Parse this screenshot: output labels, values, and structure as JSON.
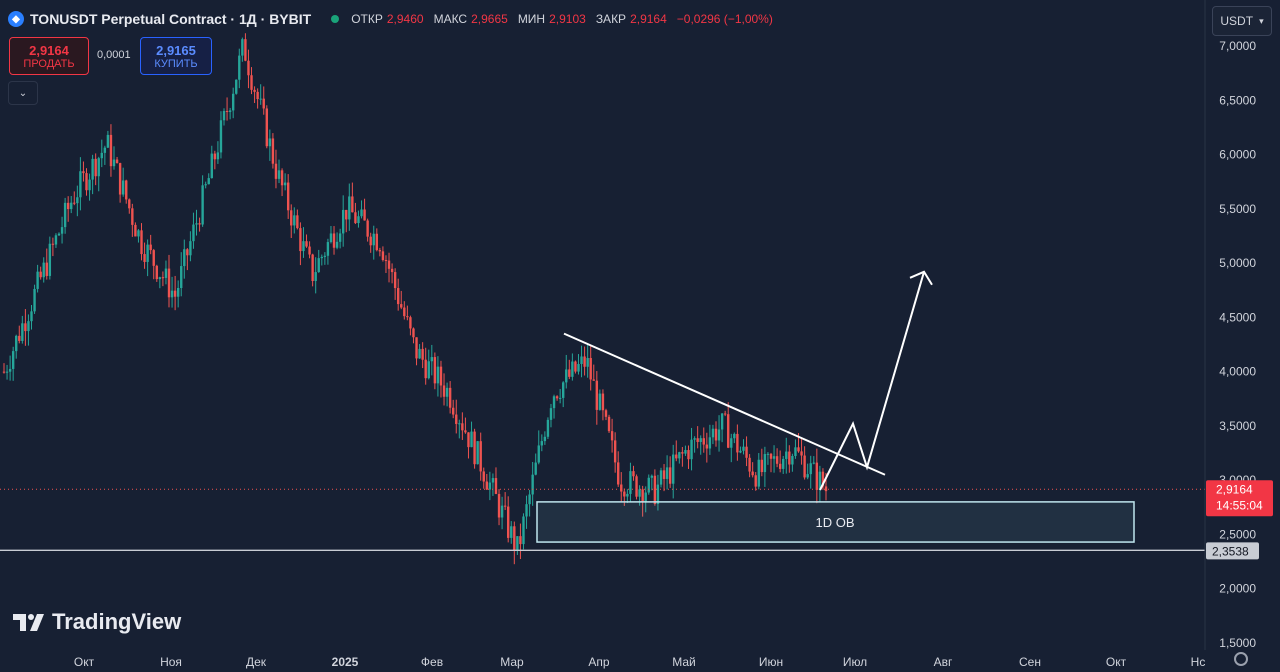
{
  "header": {
    "symbol_icon": "ton-diamond-icon",
    "title": "TONUSDT Perpetual Contract · 1Д · BYBIT",
    "ohlc": {
      "open_label": "ОТКР",
      "open": "2,9460",
      "high_label": "МАКС",
      "high": "2,9665",
      "low_label": "МИН",
      "low": "2,9103",
      "close_label": "ЗАКР",
      "close": "2,9164",
      "change": "−0,0296 (−1,00%)"
    }
  },
  "trade": {
    "sell_price": "2,9164",
    "sell_label": "ПРОДАТЬ",
    "spread": "0,0001",
    "buy_price": "2,9165",
    "buy_label": "КУПИТЬ"
  },
  "currency": "USDT",
  "branding": "TradingView",
  "chart_data": {
    "type": "candlestick",
    "y_axis_ticks": [
      "7,0000",
      "6,5000",
      "6,0000",
      "5,5000",
      "5,0000",
      "4,5000",
      "4,0000",
      "3,5000",
      "3,0000",
      "2,5000",
      "2,0000",
      "1,5000"
    ],
    "y_tick_values": [
      7.0,
      6.5,
      6.0,
      5.5,
      5.0,
      4.5,
      4.0,
      3.5,
      3.0,
      2.5,
      2.0,
      1.5
    ],
    "x_axis_ticks": [
      "Окт",
      "Ноя",
      "Дек",
      "2025",
      "Фев",
      "Мар",
      "Апр",
      "Май",
      "Июн",
      "Июл",
      "Авг",
      "Сен",
      "Окт",
      "Нс"
    ],
    "ylim": [
      1.45,
      7.05
    ],
    "current_price": "2,9164",
    "current_price_value": 2.9164,
    "countdown": "14:55:04",
    "horizontal_level": "2,3538",
    "horizontal_level_value": 2.3538,
    "zone": {
      "label": "1D OB",
      "top": 2.8,
      "bottom": 2.43
    },
    "trendline": {
      "from_price": 4.35,
      "to_price": 3.05
    },
    "projection_path_prices": [
      2.91,
      3.52,
      3.12,
      4.92
    ],
    "colors": {
      "up": "#26a69a",
      "down": "#ef5350",
      "background": "#172033",
      "grid": "#222b3e"
    },
    "key_closes": [
      4.0,
      4.8,
      5.6,
      6.1,
      5.2,
      4.7,
      5.8,
      7.0,
      5.8,
      4.9,
      5.5,
      5.2,
      4.2,
      3.8,
      3.1,
      2.35,
      3.8,
      4.1,
      3.0,
      2.9,
      3.3,
      3.5,
      3.05,
      3.3,
      2.92
    ],
    "grid": false,
    "legend": "none"
  }
}
